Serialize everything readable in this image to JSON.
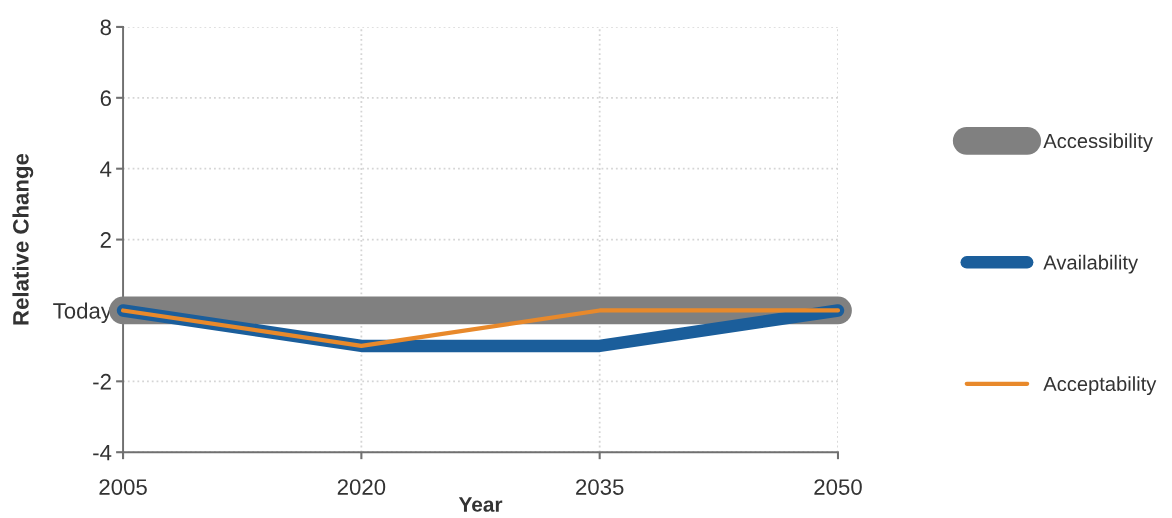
{
  "chart_data": {
    "type": "line",
    "xlabel": "Year",
    "ylabel": "Relative Change",
    "x": [
      2005,
      2020,
      2035,
      2050
    ],
    "series": [
      {
        "name": "Accessibility",
        "color": "#808080",
        "values": [
          0,
          0,
          0,
          0
        ]
      },
      {
        "name": "Availability",
        "color": "#1b5e9b",
        "values": [
          0,
          -1,
          -1,
          0
        ]
      },
      {
        "name": "Acceptability",
        "color": "#e8892b",
        "values": [
          0,
          -1,
          0,
          0
        ]
      }
    ],
    "xlim": [
      2005,
      2050
    ],
    "ylim": [
      -4,
      8
    ],
    "xticks": [
      2005,
      2020,
      2035,
      2050
    ],
    "yticks": [
      -4,
      -2,
      {
        "value": 0,
        "label": "Today"
      },
      2,
      4,
      6,
      8
    ],
    "grid": true,
    "legend": "right",
    "line_style": "solid"
  }
}
